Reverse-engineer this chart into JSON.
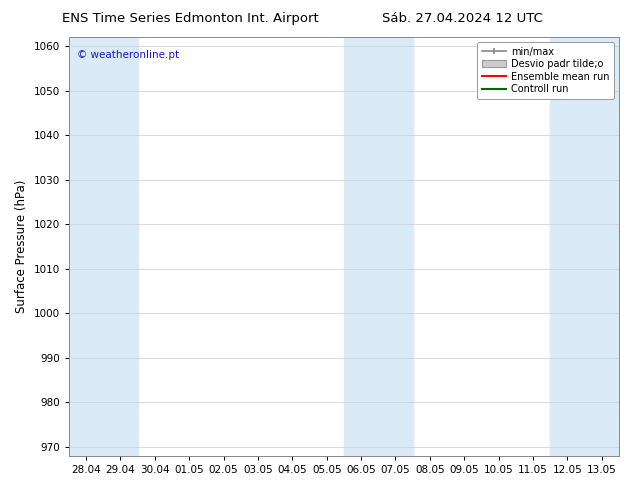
{
  "title_left": "ENS Time Series Edmonton Int. Airport",
  "title_right": "Sáb. 27.04.2024 12 UTC",
  "ylabel": "Surface Pressure (hPa)",
  "ylim": [
    968,
    1062
  ],
  "yticks": [
    970,
    980,
    990,
    1000,
    1010,
    1020,
    1030,
    1040,
    1050,
    1060
  ],
  "xlabels": [
    "28.04",
    "29.04",
    "30.04",
    "01.05",
    "02.05",
    "03.05",
    "04.05",
    "05.05",
    "06.05",
    "07.05",
    "08.05",
    "09.05",
    "10.05",
    "11.05",
    "12.05",
    "13.05"
  ],
  "background_color": "#ffffff",
  "plot_bg_color": "#ffffff",
  "shaded_indices": [
    0,
    1,
    8,
    9,
    14,
    15
  ],
  "band_color": "#daeaf7",
  "watermark": "© weatheronline.pt",
  "watermark_color": "#1a1acc",
  "legend_labels": [
    "min/max",
    "Desvio padr tilde;o",
    "Ensemble mean run",
    "Controll run"
  ],
  "legend_colors_line": [
    "#888888",
    "#bbbbbb",
    "#ff0000",
    "#006600"
  ],
  "title_fontsize": 9.5,
  "tick_fontsize": 7.5,
  "ylabel_fontsize": 8.5
}
